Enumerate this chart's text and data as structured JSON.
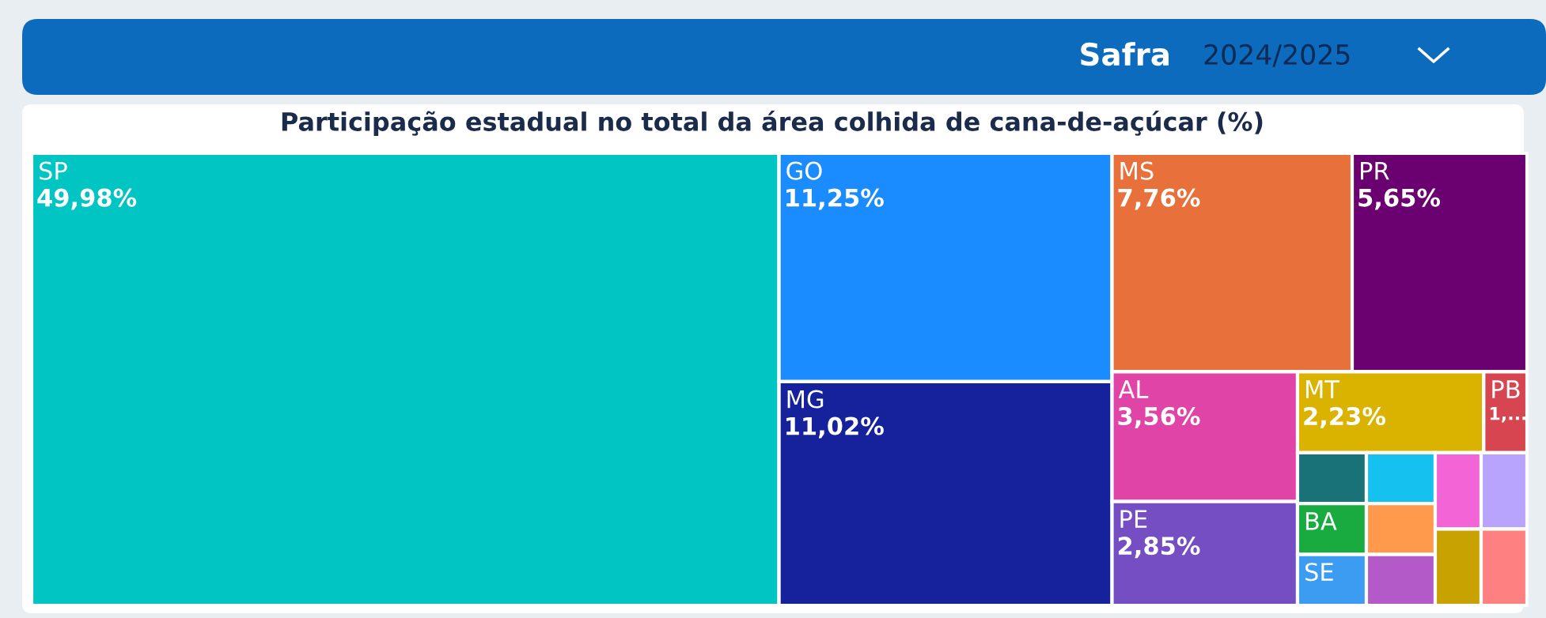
{
  "chart_data": {
    "type": "other",
    "title": "Participação estadual no total da área colhida de cana-de-açúcar (%)",
    "annotations": [
      "Safra",
      "2024/2025"
    ],
    "categories": [
      "SP",
      "GO",
      "MG",
      "MS",
      "PR",
      "AL",
      "PE",
      "MT",
      "PB",
      null,
      "BA",
      "SE",
      null,
      null,
      null,
      null,
      null,
      null,
      null
    ],
    "values": [
      49.98,
      11.25,
      11.02,
      7.76,
      5.65,
      3.56,
      2.85,
      2.23,
      null,
      null,
      null,
      null,
      null,
      null,
      null,
      null,
      null,
      null,
      null
    ],
    "value_labels": [
      "49,98%",
      "11,25%",
      "11,02%",
      "7,76%",
      "5,65%",
      "3,56%",
      "2,85%",
      "2,23%",
      "1,...",
      null,
      null,
      null,
      null,
      null,
      null,
      null,
      null,
      null,
      null
    ],
    "colors": [
      "#00c5c2",
      "#1a8cff",
      "#16229c",
      "#e8703a",
      "#6b0070",
      "#e044a7",
      "#744ec2",
      "#d9b300",
      "#d64550",
      "#197278",
      "#1aab40",
      "#3c9cf2",
      "#15c2ef",
      "#ff9a4d",
      "#b45ac8",
      "#f364d6",
      "#b9a4fd",
      "#c8a200",
      "#ff8080"
    ]
  }
}
